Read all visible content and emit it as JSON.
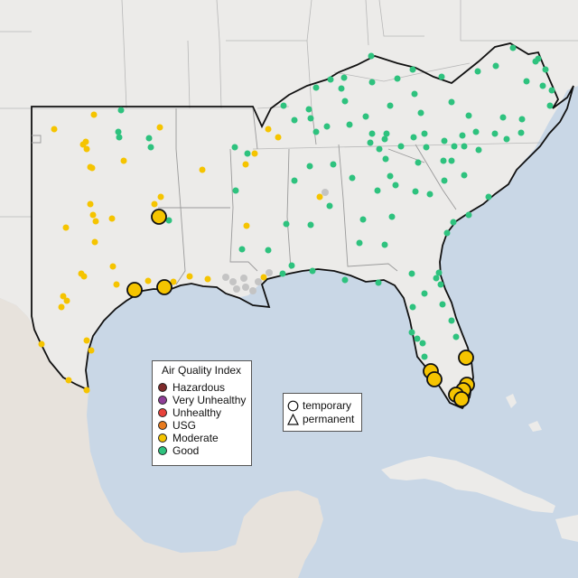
{
  "legend": {
    "title": "Air Quality Index",
    "categories": [
      {
        "label": "Hazardous",
        "color": "#7e2a2a"
      },
      {
        "label": "Very Unhealthy",
        "color": "#8f3f97"
      },
      {
        "label": "Unhealthy",
        "color": "#e8423b"
      },
      {
        "label": "USG",
        "color": "#e87b1f"
      },
      {
        "label": "Moderate",
        "color": "#f5c400"
      },
      {
        "label": "Good",
        "color": "#2ec27e"
      }
    ]
  },
  "shape_legend": {
    "temporary_label": "temporary",
    "permanent_label": "permanent"
  },
  "colors": {
    "water": "#c9d7e6",
    "land": "#ecebe9",
    "inactive_site": "#c4c4c4"
  }
}
